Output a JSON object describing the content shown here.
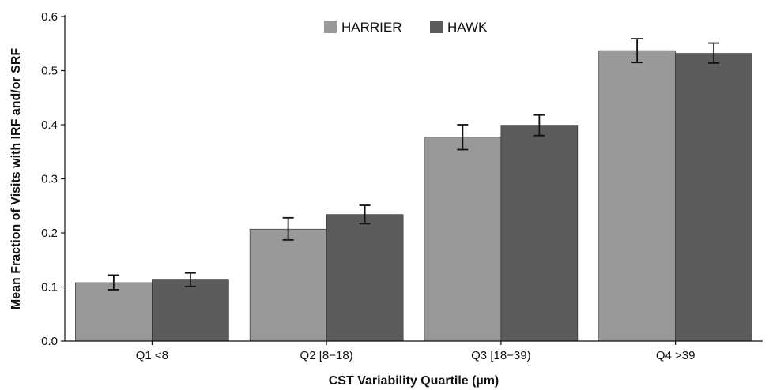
{
  "chart_data": {
    "type": "bar",
    "title": "",
    "xlabel": "CST Variability Quartile (µm)",
    "ylabel": "Mean Fraction of Visits with IRF and/or SRF",
    "ylim": [
      0,
      0.6
    ],
    "yticks": [
      "0.0",
      "0.1",
      "0.2",
      "0.3",
      "0.4",
      "0.5",
      "0.6"
    ],
    "categories": [
      "Q1 <8",
      "Q2 [8−18)",
      "Q3 [18−39)",
      "Q4 >39"
    ],
    "legend_position": "top-center",
    "grid": false,
    "series": [
      {
        "name": "HARRIER",
        "color": "#999999",
        "values": [
          0.108,
          0.207,
          0.377,
          0.537
        ],
        "err_low": [
          0.095,
          0.187,
          0.354,
          0.515
        ],
        "err_high": [
          0.122,
          0.228,
          0.4,
          0.559
        ]
      },
      {
        "name": "HAWK",
        "color": "#5c5c5c",
        "values": [
          0.113,
          0.234,
          0.399,
          0.532
        ],
        "err_low": [
          0.101,
          0.217,
          0.38,
          0.514
        ],
        "err_high": [
          0.126,
          0.251,
          0.418,
          0.551
        ]
      }
    ]
  }
}
